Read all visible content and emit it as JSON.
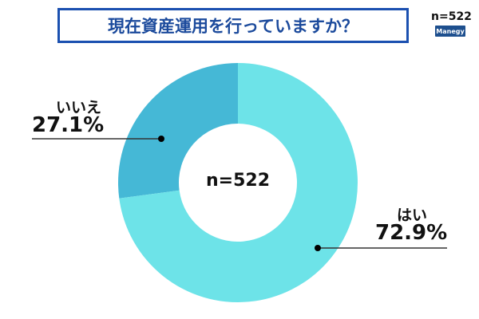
{
  "title": "現在資産運用を行っていますか？",
  "sample_size": "n=522",
  "logo_text": "Manegy",
  "center_label": "n=522",
  "colors": {
    "title_border": "#1b50b0",
    "yes": "#6de3e8",
    "no": "#45b8d6"
  },
  "chart_data": {
    "type": "pie",
    "donut": true,
    "title": "現在資産運用を行っていますか？",
    "categories": [
      "いいえ",
      "はい"
    ],
    "values": [
      27.1,
      72.9
    ],
    "value_labels": [
      "27.1%",
      "72.9%"
    ],
    "colors": [
      "#45b8d6",
      "#6de3e8"
    ]
  }
}
